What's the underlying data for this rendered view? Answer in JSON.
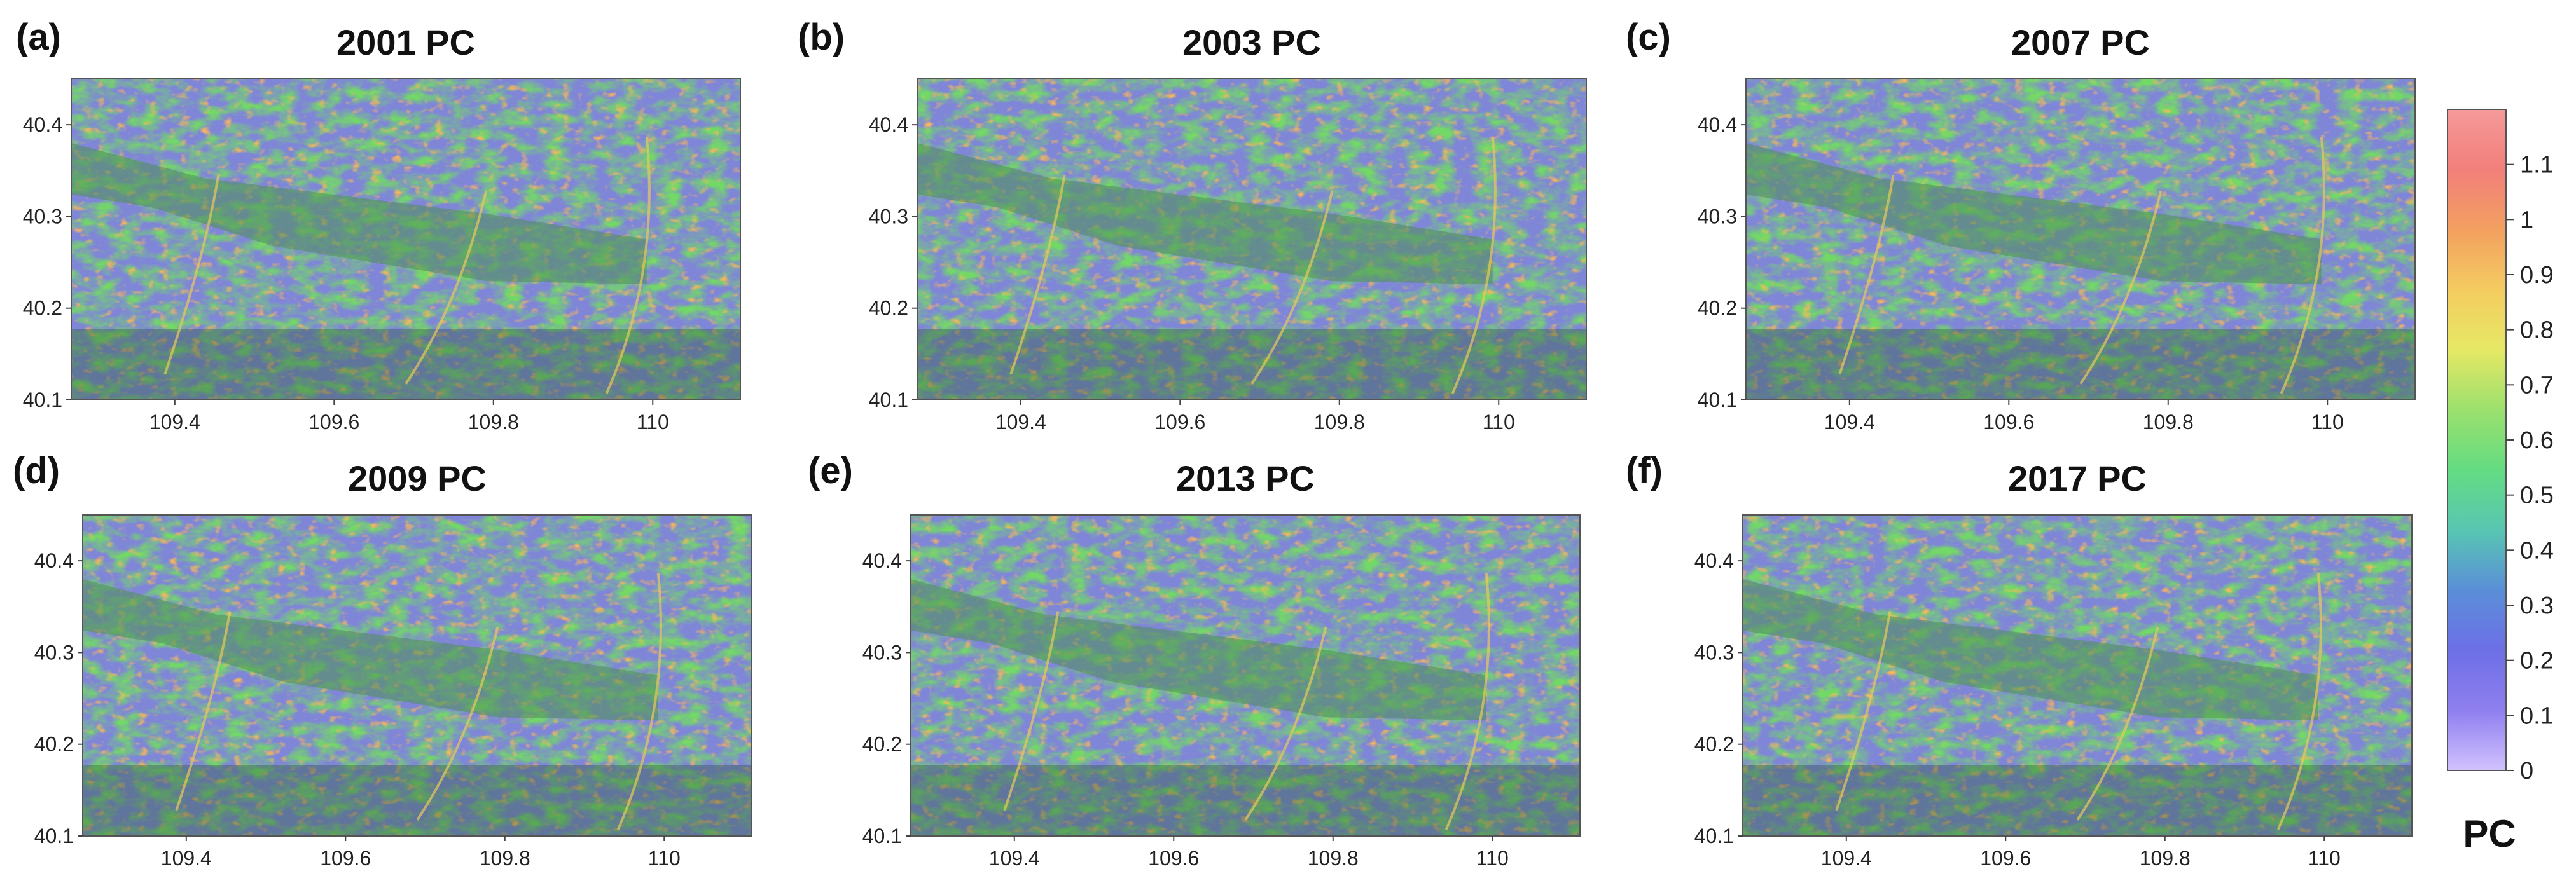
{
  "chart_data": {
    "type": "heatmap",
    "variable": "PC",
    "colorbar": {
      "label": "PC",
      "ticks": [
        "0",
        "0.1",
        "0.2",
        "0.3",
        "0.4",
        "0.5",
        "0.6",
        "0.7",
        "0.8",
        "0.9",
        "1",
        "1.1"
      ],
      "range": [
        0,
        1.2
      ],
      "colors": [
        "#d2c2ff",
        "#8f7fef",
        "#6d6fe6",
        "#5a8fd8",
        "#58c6b2",
        "#64dc82",
        "#9be06d",
        "#e6e865",
        "#f4cc60",
        "#f3a060",
        "#f27f7a",
        "#f59a9a"
      ],
      "placement": "right"
    },
    "panels": [
      {
        "tag": "(a)",
        "title": "2001 PC",
        "xlim": [
          109.27,
          110.11
        ],
        "ylim": [
          40.1,
          40.45
        ],
        "xticks": [
          {
            "v": 109.4,
            "label": "109.4"
          },
          {
            "v": 109.6,
            "label": "109.6"
          },
          {
            "v": 109.8,
            "label": "109.8"
          },
          {
            "v": 110.0,
            "label": "110"
          }
        ],
        "yticks": [
          {
            "v": 40.1,
            "label": "40.1"
          },
          {
            "v": 40.2,
            "label": "40.2"
          },
          {
            "v": 40.3,
            "label": "40.3"
          },
          {
            "v": 40.4,
            "label": "40.4"
          }
        ]
      },
      {
        "tag": "(b)",
        "title": "2003 PC",
        "xlim": [
          109.27,
          110.11
        ],
        "ylim": [
          40.1,
          40.45
        ],
        "xticks": [
          {
            "v": 109.4,
            "label": "109.4"
          },
          {
            "v": 109.6,
            "label": "109.6"
          },
          {
            "v": 109.8,
            "label": "109.8"
          },
          {
            "v": 110.0,
            "label": "110"
          }
        ],
        "yticks": [
          {
            "v": 40.1,
            "label": "40.1"
          },
          {
            "v": 40.2,
            "label": "40.2"
          },
          {
            "v": 40.3,
            "label": "40.3"
          },
          {
            "v": 40.4,
            "label": "40.4"
          }
        ]
      },
      {
        "tag": "(c)",
        "title": "2007 PC",
        "xlim": [
          109.27,
          110.11
        ],
        "ylim": [
          40.1,
          40.45
        ],
        "xticks": [
          {
            "v": 109.4,
            "label": "109.4"
          },
          {
            "v": 109.6,
            "label": "109.6"
          },
          {
            "v": 109.8,
            "label": "109.8"
          },
          {
            "v": 110.0,
            "label": "110"
          }
        ],
        "yticks": [
          {
            "v": 40.1,
            "label": "40.1"
          },
          {
            "v": 40.2,
            "label": "40.2"
          },
          {
            "v": 40.3,
            "label": "40.3"
          },
          {
            "v": 40.4,
            "label": "40.4"
          }
        ]
      },
      {
        "tag": "(d)",
        "title": "2009 PC",
        "xlim": [
          109.27,
          110.11
        ],
        "ylim": [
          40.1,
          40.45
        ],
        "xticks": [
          {
            "v": 109.4,
            "label": "109.4"
          },
          {
            "v": 109.6,
            "label": "109.6"
          },
          {
            "v": 109.8,
            "label": "109.8"
          },
          {
            "v": 110.0,
            "label": "110"
          }
        ],
        "yticks": [
          {
            "v": 40.1,
            "label": "40.1"
          },
          {
            "v": 40.2,
            "label": "40.2"
          },
          {
            "v": 40.3,
            "label": "40.3"
          },
          {
            "v": 40.4,
            "label": "40.4"
          }
        ]
      },
      {
        "tag": "(e)",
        "title": "2013 PC",
        "xlim": [
          109.27,
          110.11
        ],
        "ylim": [
          40.1,
          40.45
        ],
        "xticks": [
          {
            "v": 109.4,
            "label": "109.4"
          },
          {
            "v": 109.6,
            "label": "109.6"
          },
          {
            "v": 109.8,
            "label": "109.8"
          },
          {
            "v": 110.0,
            "label": "110"
          }
        ],
        "yticks": [
          {
            "v": 40.1,
            "label": "40.1"
          },
          {
            "v": 40.2,
            "label": "40.2"
          },
          {
            "v": 40.3,
            "label": "40.3"
          },
          {
            "v": 40.4,
            "label": "40.4"
          }
        ]
      },
      {
        "tag": "(f)",
        "title": "2017 PC",
        "xlim": [
          109.27,
          110.11
        ],
        "ylim": [
          40.1,
          40.45
        ],
        "xticks": [
          {
            "v": 109.4,
            "label": "109.4"
          },
          {
            "v": 109.6,
            "label": "109.6"
          },
          {
            "v": 109.8,
            "label": "109.8"
          },
          {
            "v": 110.0,
            "label": "110"
          }
        ],
        "yticks": [
          {
            "v": 40.1,
            "label": "40.1"
          },
          {
            "v": 40.2,
            "label": "40.2"
          },
          {
            "v": 40.3,
            "label": "40.3"
          },
          {
            "v": 40.4,
            "label": "40.4"
          }
        ]
      }
    ]
  }
}
